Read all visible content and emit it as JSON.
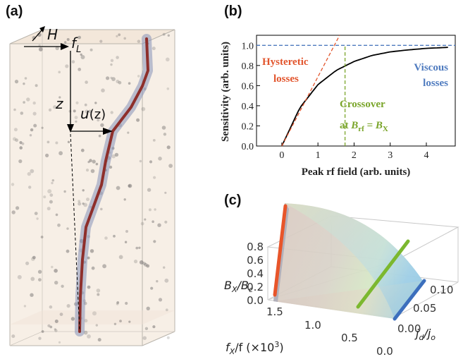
{
  "panels": {
    "a": {
      "label": "(a)",
      "symbols": {
        "H": "H",
        "fL_main": "f",
        "fL_sub": "L",
        "z": "z",
        "u": "u",
        "u_arg": "(z)"
      }
    },
    "b": {
      "label": "(b)"
    },
    "c": {
      "label": "(c)"
    }
  },
  "chart_data": [
    {
      "type": "line",
      "panel": "b",
      "xlabel": "Peak rf field (arb. units)",
      "ylabel": "Sensitivity (arb. units)",
      "xlim": [
        -0.7,
        4.8
      ],
      "ylim": [
        0.0,
        1.1
      ],
      "xticks": [
        "0",
        "1",
        "2",
        "3",
        "4"
      ],
      "yticks": [
        "0.0",
        "0.2",
        "0.4",
        "0.6",
        "0.8",
        "1.0"
      ],
      "series": [
        {
          "kind": "curve",
          "color": "#000000",
          "x": [
            0,
            0.5,
            1.0,
            1.5,
            2.0,
            2.5,
            3.0,
            3.5,
            4.0,
            4.6
          ],
          "y": [
            0,
            0.38,
            0.61,
            0.75,
            0.84,
            0.9,
            0.935,
            0.955,
            0.97,
            0.98
          ]
        },
        {
          "kind": "dashed",
          "color": "#e2552d",
          "x": [
            0,
            1.6
          ],
          "y": [
            0,
            1.1
          ]
        },
        {
          "kind": "dashed",
          "color": "#4f7bbf",
          "x": [
            -0.7,
            4.8
          ],
          "y": [
            1.0,
            1.0
          ]
        },
        {
          "kind": "dashed",
          "color": "#7aa52a",
          "x": [
            1.75,
            1.75
          ],
          "y": [
            0,
            1.0
          ]
        }
      ],
      "annotations": {
        "hysteretic": {
          "line1": "Hysteretic",
          "line2": "losses",
          "color": "#e2552d"
        },
        "viscous": {
          "line1": "Viscous",
          "line2": "losses",
          "color": "#4f7bbf"
        },
        "crossover": {
          "line1": "Crossover",
          "line2_prefix": "at ",
          "b_rf": "B",
          "rf_sub": "rf",
          "equals": " = ",
          "b_x": "B",
          "x_sub": "X",
          "color": "#7aa52a"
        }
      }
    },
    {
      "type": "surface3d",
      "panel": "c",
      "z_axis": {
        "title_main": "B",
        "title_sub1": "X",
        "slash": "/",
        "title_main2": "B",
        "title_sub2": "c",
        "ticks": [
          "0.8",
          "0.6",
          "0.4",
          "0.2",
          "0.0"
        ]
      },
      "x_axis": {
        "title_main": "f",
        "title_sub": "X",
        "title_rest": "/f (×10",
        "title_sup": "3",
        "title_close": ")",
        "ticks": [
          "1.5",
          "1.0",
          "0.5",
          "0.0"
        ]
      },
      "y_axis": {
        "title_main": "j",
        "title_sub1": "d",
        "slash": "/",
        "title_main2": "j",
        "title_sub2": "o",
        "ticks": [
          "0.10",
          "0.05",
          "0.00"
        ]
      },
      "highlight_lines": [
        {
          "color": "#e8552a"
        },
        {
          "color": "#7cb82f"
        },
        {
          "color": "#3c6fbd"
        }
      ]
    }
  ]
}
